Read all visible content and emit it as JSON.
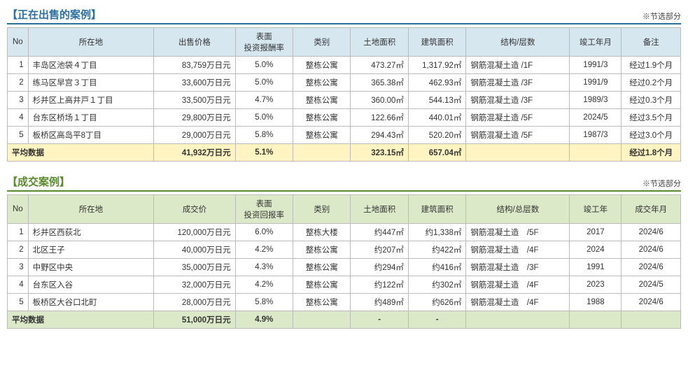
{
  "sections": [
    {
      "id": "selling",
      "title": "【正在出售的案例】",
      "note": "※节选部分",
      "title_color": "#2b6fa3",
      "border_color": "#2b6fa3",
      "header_bg": "#d7e7f0",
      "avg_bg": "#fff4c2",
      "columns": [
        "No",
        "所在地",
        "出售价格",
        "表面\n投资报酬率",
        "类别",
        "土地面积",
        "建筑面积",
        "结构/层数",
        "竣工年月",
        "备注"
      ],
      "rows": [
        {
          "no": "1",
          "loc": "丰岛区池袋４丁目",
          "price": "83,759万日元",
          "rate": "5.0%",
          "cat": "整栋公寓",
          "land": "473.27㎡",
          "bld": "1,317.92㎡",
          "str": "钢筋混凝土造 /1F",
          "year": "1991/3",
          "note": "经过1.9个月"
        },
        {
          "no": "2",
          "loc": "练马区早宫３丁目",
          "price": "33,600万日元",
          "rate": "5.0%",
          "cat": "整栋公寓",
          "land": "365.38㎡",
          "bld": "462.93㎡",
          "str": "钢筋混凝土造 /3F",
          "year": "1991/9",
          "note": "经过0.2个月"
        },
        {
          "no": "3",
          "loc": "杉并区上高井戸１丁目",
          "price": "33,500万日元",
          "rate": "4.7%",
          "cat": "整栋公寓",
          "land": "360.00㎡",
          "bld": "544.13㎡",
          "str": "钢筋混凝土造 /3F",
          "year": "1989/3",
          "note": "经过0.3个月"
        },
        {
          "no": "4",
          "loc": "台东区桥场１丁目",
          "price": "29,800万日元",
          "rate": "5.0%",
          "cat": "整栋公寓",
          "land": "122.66㎡",
          "bld": "440.01㎡",
          "str": "钢筋混凝土造 /5F",
          "year": "2024/5",
          "note": "经过3.5个月"
        },
        {
          "no": "5",
          "loc": "板桥区高岛平8丁目",
          "price": "29,000万日元",
          "rate": "5.8%",
          "cat": "整栋公寓",
          "land": "294.43㎡",
          "bld": "520.20㎡",
          "str": "钢筋混凝土造 /5F",
          "year": "1987/3",
          "note": "经过3.0个月"
        }
      ],
      "avg": {
        "label": "平均数据",
        "price": "41,932万日元",
        "rate": "5.1%",
        "cat": "",
        "land": "323.15㎡",
        "bld": "657.04㎡",
        "str": "",
        "year": "",
        "note": "经过1.8个月"
      }
    },
    {
      "id": "sold",
      "title": "【成交案例】",
      "note": "※节选部分",
      "title_color": "#5a8a2e",
      "border_color": "#5a8a2e",
      "header_bg": "#dce9c8",
      "avg_bg": "#dce9c8",
      "columns": [
        "No",
        "所在地",
        "成交价",
        "表面\n投资回报率",
        "类别",
        "土地面积",
        "建筑面积",
        "结构/总层数",
        "竣工年",
        "成交年月"
      ],
      "rows": [
        {
          "no": "1",
          "loc": "杉并区西荻北",
          "price": "120,000万日元",
          "rate": "6.0%",
          "cat": "整栋大楼",
          "land": "约447㎡",
          "bld": "约1,338㎡",
          "str": "钢筋混凝土造　/5F",
          "year": "2017",
          "note": "2024/6"
        },
        {
          "no": "2",
          "loc": "北区王子",
          "price": "40,000万日元",
          "rate": "4.2%",
          "cat": "整栋公寓",
          "land": "约207㎡",
          "bld": "约422㎡",
          "str": "钢筋混凝土造　/4F",
          "year": "2024",
          "note": "2024/6"
        },
        {
          "no": "3",
          "loc": "中野区中央",
          "price": "35,000万日元",
          "rate": "4.3%",
          "cat": "整栋公寓",
          "land": "约294㎡",
          "bld": "约416㎡",
          "str": "钢筋混凝土造　/3F",
          "year": "1991",
          "note": "2024/6"
        },
        {
          "no": "4",
          "loc": "台东区入谷",
          "price": "32,000万日元",
          "rate": "4.2%",
          "cat": "整栋公寓",
          "land": "约122㎡",
          "bld": "约302㎡",
          "str": "钢筋混凝土造　/4F",
          "year": "2023",
          "note": "2024/5"
        },
        {
          "no": "5",
          "loc": "板桥区大谷口北町",
          "price": "28,000万日元",
          "rate": "5.8%",
          "cat": "整栋公寓",
          "land": "约489㎡",
          "bld": "约626㎡",
          "str": "钢筋混凝土造　/4F",
          "year": "1988",
          "note": "2024/6"
        }
      ],
      "avg": {
        "label": "平均数据",
        "price": "51,000万日元",
        "rate": "4.9%",
        "cat": "",
        "land": "-",
        "bld": "-",
        "str": "",
        "year": "",
        "note": ""
      }
    }
  ]
}
